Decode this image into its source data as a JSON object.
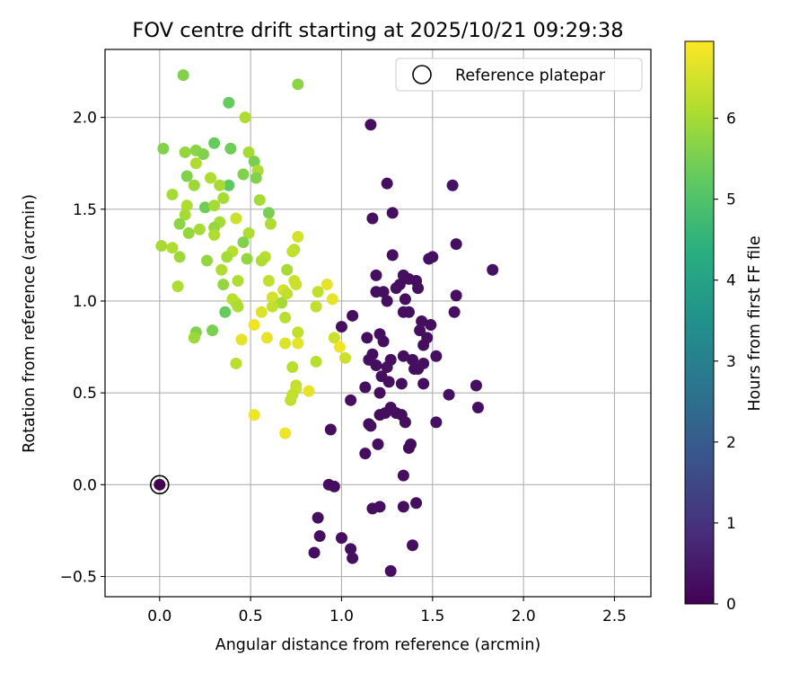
{
  "chart_data": {
    "type": "scatter",
    "title": "FOV centre drift starting at 2025/10/21 09:29:38",
    "xlabel": "Angular distance from reference (arcmin)",
    "ylabel": "Rotation from reference (arcmin)",
    "xlim": [
      -0.3,
      2.7
    ],
    "ylim": [
      -0.61,
      2.37
    ],
    "xticks": [
      0.0,
      0.5,
      1.0,
      1.5,
      2.0,
      2.5
    ],
    "xtick_labels": [
      "0.0",
      "0.5",
      "1.0",
      "1.5",
      "2.0",
      "2.5"
    ],
    "yticks": [
      -0.5,
      0.0,
      0.5,
      1.0,
      1.5,
      2.0
    ],
    "ytick_labels": [
      "−0.5",
      "0.0",
      "0.5",
      "1.0",
      "1.5",
      "2.0"
    ],
    "grid": true,
    "legend": {
      "position": "top-right",
      "entries": [
        "Reference platepar"
      ]
    },
    "colorbar": {
      "label": "Hours from first FF file",
      "colormap": "viridis",
      "range": [
        0,
        6.95
      ],
      "ticks": [
        0,
        1,
        2,
        3,
        4,
        5,
        6
      ],
      "tick_labels": [
        "0",
        "1",
        "2",
        "3",
        "4",
        "5",
        "6"
      ]
    },
    "reference_point": {
      "x": 0.0,
      "y": 0.0,
      "hours": 0.0
    },
    "points": [
      {
        "x": 1.16,
        "y": 1.96,
        "h": 0.25
      },
      {
        "x": 1.25,
        "y": 1.64,
        "h": 0.25
      },
      {
        "x": 1.61,
        "y": 1.63,
        "h": 0.35
      },
      {
        "x": 1.28,
        "y": 1.48,
        "h": 0.25
      },
      {
        "x": 1.17,
        "y": 1.45,
        "h": 0.25
      },
      {
        "x": 1.63,
        "y": 1.31,
        "h": 0.3
      },
      {
        "x": 1.28,
        "y": 1.25,
        "h": 0.25
      },
      {
        "x": 1.5,
        "y": 1.24,
        "h": 0.3
      },
      {
        "x": 1.48,
        "y": 1.23,
        "h": 0.3
      },
      {
        "x": 1.83,
        "y": 1.17,
        "h": 0.3
      },
      {
        "x": 1.19,
        "y": 1.14,
        "h": 0.25
      },
      {
        "x": 1.34,
        "y": 1.14,
        "h": 0.25
      },
      {
        "x": 1.37,
        "y": 1.12,
        "h": 0.25
      },
      {
        "x": 1.41,
        "y": 1.11,
        "h": 0.25
      },
      {
        "x": 1.32,
        "y": 1.09,
        "h": 0.25
      },
      {
        "x": 1.3,
        "y": 1.07,
        "h": 0.25
      },
      {
        "x": 1.42,
        "y": 1.07,
        "h": 0.25
      },
      {
        "x": 1.19,
        "y": 1.05,
        "h": 0.25
      },
      {
        "x": 1.23,
        "y": 1.05,
        "h": 0.25
      },
      {
        "x": 1.63,
        "y": 1.03,
        "h": 0.3
      },
      {
        "x": 1.35,
        "y": 1.01,
        "h": 0.25
      },
      {
        "x": 1.25,
        "y": 1.0,
        "h": 0.25
      },
      {
        "x": 1.34,
        "y": 0.94,
        "h": 0.25
      },
      {
        "x": 1.37,
        "y": 0.94,
        "h": 0.25
      },
      {
        "x": 1.62,
        "y": 0.94,
        "h": 0.3
      },
      {
        "x": 1.06,
        "y": 0.92,
        "h": 0.25
      },
      {
        "x": 1.44,
        "y": 0.89,
        "h": 0.25
      },
      {
        "x": 1.49,
        "y": 0.87,
        "h": 0.25
      },
      {
        "x": 1.0,
        "y": 0.86,
        "h": 0.25
      },
      {
        "x": 1.43,
        "y": 0.84,
        "h": 0.25
      },
      {
        "x": 1.21,
        "y": 0.82,
        "h": 0.25
      },
      {
        "x": 1.14,
        "y": 0.8,
        "h": 0.25
      },
      {
        "x": 1.47,
        "y": 0.8,
        "h": 0.25
      },
      {
        "x": 1.23,
        "y": 0.78,
        "h": 0.25
      },
      {
        "x": 1.45,
        "y": 0.76,
        "h": 0.25
      },
      {
        "x": 1.17,
        "y": 0.71,
        "h": 0.25
      },
      {
        "x": 1.34,
        "y": 0.7,
        "h": 0.25
      },
      {
        "x": 1.52,
        "y": 0.7,
        "h": 0.25
      },
      {
        "x": 1.15,
        "y": 0.68,
        "h": 0.25
      },
      {
        "x": 1.27,
        "y": 0.68,
        "h": 0.25
      },
      {
        "x": 1.39,
        "y": 0.68,
        "h": 0.25
      },
      {
        "x": 1.45,
        "y": 0.66,
        "h": 0.25
      },
      {
        "x": 1.19,
        "y": 0.65,
        "h": 0.25
      },
      {
        "x": 1.25,
        "y": 0.64,
        "h": 0.25
      },
      {
        "x": 1.4,
        "y": 0.63,
        "h": 0.25
      },
      {
        "x": 1.42,
        "y": 0.63,
        "h": 0.25
      },
      {
        "x": 1.22,
        "y": 0.59,
        "h": 0.25
      },
      {
        "x": 1.26,
        "y": 0.56,
        "h": 0.25
      },
      {
        "x": 1.33,
        "y": 0.55,
        "h": 0.25
      },
      {
        "x": 1.45,
        "y": 0.55,
        "h": 0.25
      },
      {
        "x": 1.13,
        "y": 0.53,
        "h": 0.25
      },
      {
        "x": 1.74,
        "y": 0.54,
        "h": 0.3
      },
      {
        "x": 1.21,
        "y": 0.5,
        "h": 0.25
      },
      {
        "x": 1.59,
        "y": 0.49,
        "h": 0.3
      },
      {
        "x": 1.05,
        "y": 0.46,
        "h": 0.25
      },
      {
        "x": 1.75,
        "y": 0.42,
        "h": 0.3
      },
      {
        "x": 1.27,
        "y": 0.42,
        "h": 0.25
      },
      {
        "x": 1.24,
        "y": 0.39,
        "h": 0.25
      },
      {
        "x": 1.3,
        "y": 0.39,
        "h": 0.25
      },
      {
        "x": 1.33,
        "y": 0.38,
        "h": 0.25
      },
      {
        "x": 1.21,
        "y": 0.38,
        "h": 0.25
      },
      {
        "x": 1.35,
        "y": 0.34,
        "h": 0.25
      },
      {
        "x": 1.52,
        "y": 0.34,
        "h": 0.3
      },
      {
        "x": 1.15,
        "y": 0.33,
        "h": 0.25
      },
      {
        "x": 1.16,
        "y": 0.32,
        "h": 0.25
      },
      {
        "x": 0.94,
        "y": 0.3,
        "h": 0.25
      },
      {
        "x": 1.2,
        "y": 0.22,
        "h": 0.25
      },
      {
        "x": 1.38,
        "y": 0.22,
        "h": 0.25
      },
      {
        "x": 1.37,
        "y": 0.2,
        "h": 0.25
      },
      {
        "x": 1.13,
        "y": 0.17,
        "h": 0.25
      },
      {
        "x": 1.34,
        "y": 0.05,
        "h": 0.25
      },
      {
        "x": 0.93,
        "y": 0.0,
        "h": 0.25
      },
      {
        "x": 0.96,
        "y": -0.01,
        "h": 0.25
      },
      {
        "x": 1.41,
        "y": -0.1,
        "h": 0.25
      },
      {
        "x": 1.34,
        "y": -0.12,
        "h": 0.25
      },
      {
        "x": 1.21,
        "y": -0.12,
        "h": 0.25
      },
      {
        "x": 1.17,
        "y": -0.13,
        "h": 0.25
      },
      {
        "x": 0.87,
        "y": -0.18,
        "h": 0.25
      },
      {
        "x": 0.88,
        "y": -0.28,
        "h": 0.25
      },
      {
        "x": 1.0,
        "y": -0.29,
        "h": 0.25
      },
      {
        "x": 1.39,
        "y": -0.33,
        "h": 0.25
      },
      {
        "x": 1.05,
        "y": -0.35,
        "h": 0.25
      },
      {
        "x": 0.85,
        "y": -0.37,
        "h": 0.25
      },
      {
        "x": 1.06,
        "y": -0.4,
        "h": 0.25
      },
      {
        "x": 1.27,
        "y": -0.47,
        "h": 0.25
      },
      {
        "x": 0.13,
        "y": 2.23,
        "h": 5.6
      },
      {
        "x": 0.38,
        "y": 2.08,
        "h": 5.3
      },
      {
        "x": 0.76,
        "y": 2.18,
        "h": 5.7
      },
      {
        "x": 0.47,
        "y": 2.0,
        "h": 6.1
      },
      {
        "x": 0.3,
        "y": 1.86,
        "h": 5.3
      },
      {
        "x": 0.02,
        "y": 1.83,
        "h": 5.6
      },
      {
        "x": 0.39,
        "y": 1.83,
        "h": 5.4
      },
      {
        "x": 0.14,
        "y": 1.81,
        "h": 5.8
      },
      {
        "x": 0.2,
        "y": 1.82,
        "h": 5.7
      },
      {
        "x": 0.24,
        "y": 1.8,
        "h": 5.6
      },
      {
        "x": 0.49,
        "y": 1.81,
        "h": 6.0
      },
      {
        "x": 0.52,
        "y": 1.76,
        "h": 5.5
      },
      {
        "x": 0.2,
        "y": 1.75,
        "h": 6.1
      },
      {
        "x": 0.54,
        "y": 1.71,
        "h": 6.1
      },
      {
        "x": 0.46,
        "y": 1.69,
        "h": 5.6
      },
      {
        "x": 0.53,
        "y": 1.67,
        "h": 5.6
      },
      {
        "x": 0.15,
        "y": 1.68,
        "h": 5.6
      },
      {
        "x": 0.28,
        "y": 1.67,
        "h": 6.1
      },
      {
        "x": 0.19,
        "y": 1.63,
        "h": 5.9
      },
      {
        "x": 0.38,
        "y": 1.63,
        "h": 5.2
      },
      {
        "x": 0.33,
        "y": 1.63,
        "h": 6.0
      },
      {
        "x": 0.07,
        "y": 1.58,
        "h": 6.0
      },
      {
        "x": 0.35,
        "y": 1.56,
        "h": 6.0
      },
      {
        "x": 0.55,
        "y": 1.55,
        "h": 6.0
      },
      {
        "x": 0.25,
        "y": 1.51,
        "h": 5.4
      },
      {
        "x": 0.3,
        "y": 1.52,
        "h": 6.0
      },
      {
        "x": 0.15,
        "y": 1.52,
        "h": 6.1
      },
      {
        "x": 0.6,
        "y": 1.48,
        "h": 5.5
      },
      {
        "x": 0.14,
        "y": 1.47,
        "h": 6.0
      },
      {
        "x": 0.42,
        "y": 1.45,
        "h": 6.4
      },
      {
        "x": 0.33,
        "y": 1.43,
        "h": 6.0
      },
      {
        "x": 0.11,
        "y": 1.42,
        "h": 5.7
      },
      {
        "x": 0.61,
        "y": 1.42,
        "h": 6.1
      },
      {
        "x": 0.3,
        "y": 1.4,
        "h": 5.8
      },
      {
        "x": 0.22,
        "y": 1.39,
        "h": 6.0
      },
      {
        "x": 0.16,
        "y": 1.37,
        "h": 5.8
      },
      {
        "x": 0.49,
        "y": 1.37,
        "h": 6.1
      },
      {
        "x": 0.3,
        "y": 1.36,
        "h": 6.1
      },
      {
        "x": 0.76,
        "y": 1.35,
        "h": 6.5
      },
      {
        "x": 0.46,
        "y": 1.32,
        "h": 5.6
      },
      {
        "x": 0.01,
        "y": 1.3,
        "h": 6.0
      },
      {
        "x": 0.07,
        "y": 1.29,
        "h": 6.1
      },
      {
        "x": 0.74,
        "y": 1.28,
        "h": 6.2
      },
      {
        "x": 0.4,
        "y": 1.27,
        "h": 6.2
      },
      {
        "x": 0.73,
        "y": 1.27,
        "h": 6.3
      },
      {
        "x": 0.37,
        "y": 1.24,
        "h": 6.0
      },
      {
        "x": 0.58,
        "y": 1.24,
        "h": 6.2
      },
      {
        "x": 0.11,
        "y": 1.24,
        "h": 5.9
      },
      {
        "x": 0.48,
        "y": 1.23,
        "h": 5.8
      },
      {
        "x": 0.56,
        "y": 1.22,
        "h": 6.1
      },
      {
        "x": 0.26,
        "y": 1.22,
        "h": 5.8
      },
      {
        "x": 0.34,
        "y": 1.17,
        "h": 6.1
      },
      {
        "x": 0.7,
        "y": 1.17,
        "h": 6.0
      },
      {
        "x": 0.43,
        "y": 1.11,
        "h": 6.1
      },
      {
        "x": 0.6,
        "y": 1.11,
        "h": 6.3
      },
      {
        "x": 0.74,
        "y": 1.11,
        "h": 6.4
      },
      {
        "x": 0.75,
        "y": 1.09,
        "h": 6.4
      },
      {
        "x": 0.35,
        "y": 1.09,
        "h": 5.8
      },
      {
        "x": 0.1,
        "y": 1.08,
        "h": 6.1
      },
      {
        "x": 0.68,
        "y": 1.06,
        "h": 6.5
      },
      {
        "x": 0.92,
        "y": 1.09,
        "h": 6.7
      },
      {
        "x": 0.87,
        "y": 1.05,
        "h": 6.3
      },
      {
        "x": 0.7,
        "y": 1.04,
        "h": 6.3
      },
      {
        "x": 0.62,
        "y": 1.02,
        "h": 6.5
      },
      {
        "x": 0.4,
        "y": 1.01,
        "h": 6.2
      },
      {
        "x": 0.95,
        "y": 1.01,
        "h": 6.7
      },
      {
        "x": 0.42,
        "y": 0.99,
        "h": 6.2
      },
      {
        "x": 0.67,
        "y": 0.99,
        "h": 6.0
      },
      {
        "x": 0.86,
        "y": 0.97,
        "h": 6.3
      },
      {
        "x": 0.43,
        "y": 0.97,
        "h": 6.1
      },
      {
        "x": 0.62,
        "y": 0.97,
        "h": 6.3
      },
      {
        "x": 0.36,
        "y": 0.94,
        "h": 5.3
      },
      {
        "x": 0.56,
        "y": 0.94,
        "h": 6.6
      },
      {
        "x": 0.69,
        "y": 0.91,
        "h": 6.2
      },
      {
        "x": 0.52,
        "y": 0.87,
        "h": 6.8
      },
      {
        "x": 0.29,
        "y": 0.84,
        "h": 5.5
      },
      {
        "x": 0.2,
        "y": 0.83,
        "h": 5.6
      },
      {
        "x": 0.76,
        "y": 0.83,
        "h": 6.3
      },
      {
        "x": 0.19,
        "y": 0.8,
        "h": 5.9
      },
      {
        "x": 0.96,
        "y": 0.8,
        "h": 6.4
      },
      {
        "x": 0.59,
        "y": 0.8,
        "h": 6.7
      },
      {
        "x": 0.45,
        "y": 0.79,
        "h": 6.7
      },
      {
        "x": 0.69,
        "y": 0.77,
        "h": 6.6
      },
      {
        "x": 0.76,
        "y": 0.77,
        "h": 6.7
      },
      {
        "x": 0.99,
        "y": 0.75,
        "h": 6.8
      },
      {
        "x": 1.02,
        "y": 0.69,
        "h": 6.4
      },
      {
        "x": 0.86,
        "y": 0.67,
        "h": 6.2
      },
      {
        "x": 0.42,
        "y": 0.66,
        "h": 6.2
      },
      {
        "x": 0.73,
        "y": 0.64,
        "h": 6.2
      },
      {
        "x": 0.75,
        "y": 0.54,
        "h": 6.3
      },
      {
        "x": 0.75,
        "y": 0.52,
        "h": 6.4
      },
      {
        "x": 0.82,
        "y": 0.51,
        "h": 6.7
      },
      {
        "x": 0.73,
        "y": 0.49,
        "h": 6.3
      },
      {
        "x": 0.72,
        "y": 0.46,
        "h": 6.3
      },
      {
        "x": 0.52,
        "y": 0.38,
        "h": 6.8
      },
      {
        "x": 0.69,
        "y": 0.28,
        "h": 6.8
      }
    ]
  }
}
